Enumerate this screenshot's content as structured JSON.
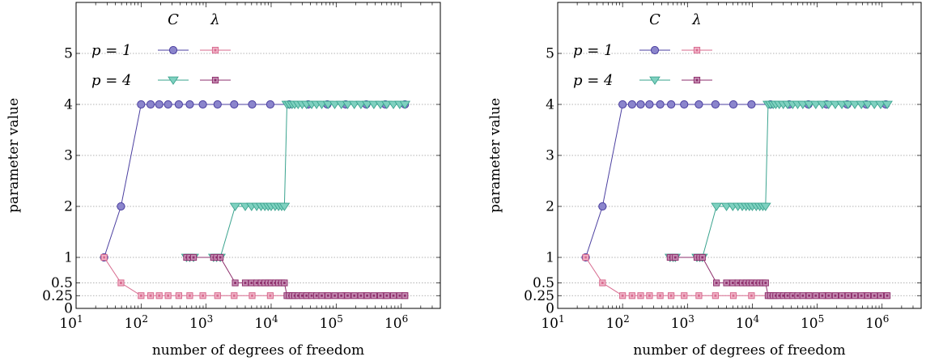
{
  "colors": {
    "C_p1": "#4b3fa0",
    "C_p1_fill": "#8b85cc",
    "lambda_p1": "#d76a8e",
    "lambda_p1_fill": "#f1b5c9",
    "C_p4": "#3aa38e",
    "C_p4_fill": "#7fd1c0",
    "lambda_p4": "#8e2f6c",
    "lambda_p4_fill": "#c791b6",
    "grid": "#9a9a9a"
  },
  "legend": {
    "col_C": "C",
    "col_lambda": "λ",
    "row_p1": "p = 1",
    "row_p4": "p = 4"
  },
  "chart_data": [
    {
      "type": "line",
      "xlabel": "number of degrees of freedom",
      "ylabel": "parameter value",
      "x_scale": "log",
      "xlim": [
        10,
        4000000
      ],
      "ylim": [
        0,
        6
      ],
      "x_ticks": [
        10,
        100,
        1000,
        10000,
        100000,
        1000000
      ],
      "x_tick_labels": [
        "10^1",
        "10^2",
        "10^3",
        "10^4",
        "10^5",
        "10^6"
      ],
      "y_ticks": [
        0,
        0.25,
        0.5,
        1,
        2,
        3,
        4,
        5
      ],
      "y_tick_labels": [
        "0",
        "0.25",
        "0.5",
        "1",
        "2",
        "3",
        "4",
        "5"
      ],
      "grid": "horizontal dotted",
      "legend_position": "top-left",
      "series": [
        {
          "name": "C",
          "group": "p = 1",
          "marker": "circle",
          "x": [
            27,
            49,
            100,
            140,
            190,
            260,
            380,
            560,
            890,
            1500,
            2700,
            5100,
            9700,
            19000,
            37000,
            73000,
            140000,
            290000,
            570000,
            1140000
          ],
          "y": [
            1,
            2,
            4,
            4,
            4,
            4,
            4,
            4,
            4,
            4,
            4,
            4,
            4,
            4,
            4,
            4,
            4,
            4,
            4,
            4
          ]
        },
        {
          "name": "λ",
          "group": "p = 1",
          "marker": "square",
          "x": [
            27,
            49,
            100,
            140,
            190,
            260,
            380,
            560,
            890,
            1500,
            2700,
            5100,
            9700,
            19000,
            37000,
            73000,
            140000,
            290000,
            570000,
            1140000
          ],
          "y": [
            1,
            0.5,
            0.25,
            0.25,
            0.25,
            0.25,
            0.25,
            0.25,
            0.25,
            0.25,
            0.25,
            0.25,
            0.25,
            0.25,
            0.25,
            0.25,
            0.25,
            0.25,
            0.25,
            0.25
          ]
        },
        {
          "name": "C",
          "group": "p = 4",
          "marker": "triangle-down",
          "x": [
            500,
            560,
            640,
            1300,
            1450,
            1650,
            2800,
            4000,
            5000,
            6000,
            7000,
            8000,
            9000,
            10000,
            11500,
            13000,
            14500,
            16000,
            17500,
            19000,
            21000,
            23000,
            26000,
            30000,
            35000,
            42000,
            50000,
            60000,
            75000,
            95000,
            120000,
            150000,
            190000,
            240000,
            300000,
            380000,
            480000,
            600000,
            760000,
            950000,
            1140000
          ],
          "y": [
            1,
            1,
            1,
            1,
            1,
            1,
            2,
            2,
            2,
            2,
            2,
            2,
            2,
            2,
            2,
            2,
            2,
            2,
            4,
            4,
            4,
            4,
            4,
            4,
            4,
            4,
            4,
            4,
            4,
            4,
            4,
            4,
            4,
            4,
            4,
            4,
            4,
            4,
            4,
            4,
            4
          ]
        },
        {
          "name": "λ",
          "group": "p = 4",
          "marker": "square",
          "x": [
            500,
            560,
            640,
            1300,
            1450,
            1650,
            2800,
            4000,
            5000,
            6000,
            7000,
            8000,
            9000,
            10000,
            11500,
            13000,
            14500,
            16000,
            17500,
            19000,
            21000,
            23000,
            26000,
            30000,
            35000,
            42000,
            50000,
            60000,
            75000,
            95000,
            120000,
            150000,
            190000,
            240000,
            300000,
            380000,
            480000,
            600000,
            760000,
            950000,
            1140000
          ],
          "y": [
            1,
            1,
            1,
            1,
            1,
            1,
            0.5,
            0.5,
            0.5,
            0.5,
            0.5,
            0.5,
            0.5,
            0.5,
            0.5,
            0.5,
            0.5,
            0.5,
            0.25,
            0.25,
            0.25,
            0.25,
            0.25,
            0.25,
            0.25,
            0.25,
            0.25,
            0.25,
            0.25,
            0.25,
            0.25,
            0.25,
            0.25,
            0.25,
            0.25,
            0.25,
            0.25,
            0.25,
            0.25,
            0.25,
            0.25
          ]
        }
      ]
    },
    {
      "type": "line",
      "xlabel": "number of degrees of freedom",
      "ylabel": "parameter value",
      "x_scale": "log",
      "xlim": [
        10,
        4000000
      ],
      "ylim": [
        0,
        6
      ],
      "x_ticks": [
        10,
        100,
        1000,
        10000,
        100000,
        1000000
      ],
      "x_tick_labels": [
        "10^1",
        "10^2",
        "10^3",
        "10^4",
        "10^5",
        "10^6"
      ],
      "y_ticks": [
        0,
        0.25,
        0.5,
        1,
        2,
        3,
        4,
        5
      ],
      "y_tick_labels": [
        "0",
        "0.25",
        "0.5",
        "1",
        "2",
        "3",
        "4",
        "5"
      ],
      "grid": "horizontal dotted",
      "legend_position": "top-left",
      "series": [
        {
          "name": "C",
          "group": "p = 1",
          "marker": "circle",
          "x": [
            27,
            49,
            100,
            140,
            190,
            260,
            380,
            560,
            890,
            1500,
            2700,
            5100,
            9700,
            19000,
            37000,
            73000,
            140000,
            290000,
            570000,
            1140000
          ],
          "y": [
            1,
            2,
            4,
            4,
            4,
            4,
            4,
            4,
            4,
            4,
            4,
            4,
            4,
            4,
            4,
            4,
            4,
            4,
            4,
            4
          ]
        },
        {
          "name": "λ",
          "group": "p = 1",
          "marker": "square",
          "x": [
            27,
            49,
            100,
            140,
            190,
            260,
            380,
            560,
            890,
            1500,
            2700,
            5100,
            9700,
            19000,
            37000,
            73000,
            140000,
            290000,
            570000,
            1140000
          ],
          "y": [
            1,
            0.5,
            0.25,
            0.25,
            0.25,
            0.25,
            0.25,
            0.25,
            0.25,
            0.25,
            0.25,
            0.25,
            0.25,
            0.25,
            0.25,
            0.25,
            0.25,
            0.25,
            0.25,
            0.25
          ]
        },
        {
          "name": "C",
          "group": "p = 4",
          "marker": "triangle-down",
          "x": [
            540,
            600,
            650,
            1400,
            1550,
            1700,
            2800,
            4000,
            5000,
            6000,
            7000,
            8000,
            9000,
            10000,
            11500,
            13000,
            14500,
            16000,
            17500,
            19000,
            21000,
            23000,
            26000,
            30000,
            35000,
            42000,
            50000,
            60000,
            75000,
            95000,
            120000,
            150000,
            190000,
            240000,
            300000,
            380000,
            480000,
            600000,
            760000,
            950000,
            1200000
          ],
          "y": [
            1,
            1,
            1,
            1,
            1,
            1,
            2,
            2,
            2,
            2,
            2,
            2,
            2,
            2,
            2,
            2,
            2,
            2,
            4,
            4,
            4,
            4,
            4,
            4,
            4,
            4,
            4,
            4,
            4,
            4,
            4,
            4,
            4,
            4,
            4,
            4,
            4,
            4,
            4,
            4,
            4
          ]
        },
        {
          "name": "λ",
          "group": "p = 4",
          "marker": "square",
          "x": [
            540,
            600,
            650,
            1400,
            1550,
            1700,
            2800,
            4000,
            5000,
            6000,
            7000,
            8000,
            9000,
            10000,
            11500,
            13000,
            14500,
            16000,
            17500,
            19000,
            21000,
            23000,
            26000,
            30000,
            35000,
            42000,
            50000,
            60000,
            75000,
            95000,
            120000,
            150000,
            190000,
            240000,
            300000,
            380000,
            480000,
            600000,
            760000,
            950000,
            1200000
          ],
          "y": [
            1,
            1,
            1,
            1,
            1,
            1,
            0.5,
            0.5,
            0.5,
            0.5,
            0.5,
            0.5,
            0.5,
            0.5,
            0.5,
            0.5,
            0.5,
            0.5,
            0.25,
            0.25,
            0.25,
            0.25,
            0.25,
            0.25,
            0.25,
            0.25,
            0.25,
            0.25,
            0.25,
            0.25,
            0.25,
            0.25,
            0.25,
            0.25,
            0.25,
            0.25,
            0.25,
            0.25,
            0.25,
            0.25,
            0.25
          ]
        }
      ]
    }
  ]
}
